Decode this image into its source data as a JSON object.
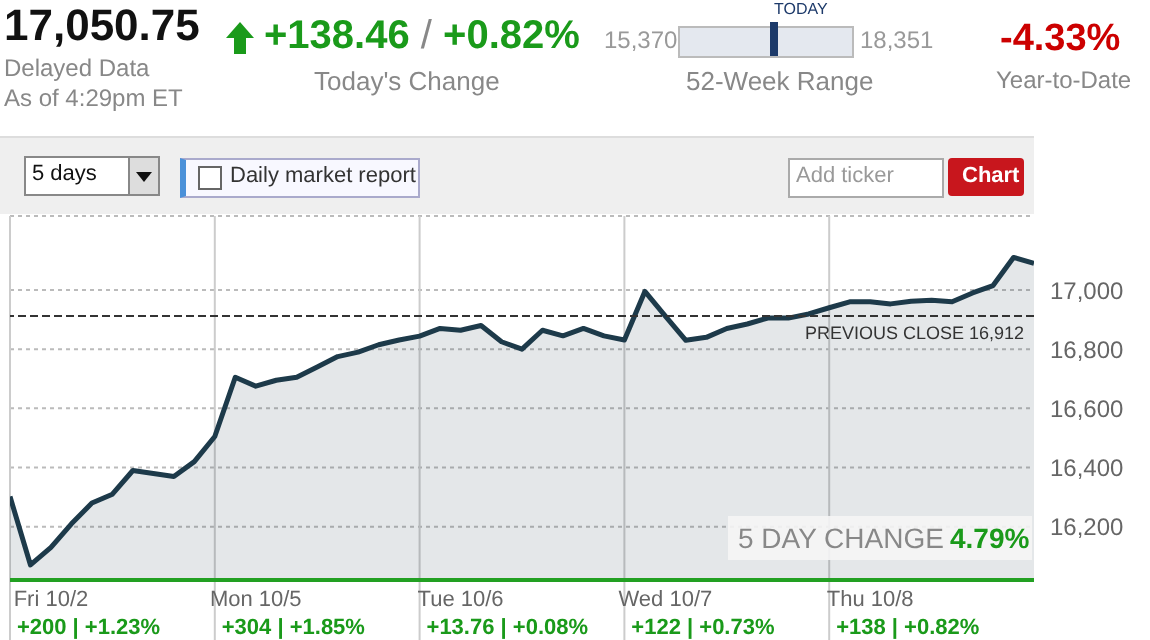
{
  "chart_data": {
    "type": "area",
    "categories": [
      null,
      null,
      "Fri 10/2",
      null,
      null,
      null,
      null,
      null,
      null,
      null,
      null,
      null,
      "Mon 10/5",
      null,
      null,
      null,
      null,
      null,
      null,
      null,
      null,
      null,
      "Tue 10/6",
      null,
      null,
      null,
      null,
      null,
      null,
      null,
      null,
      null,
      "Wed 10/7",
      null,
      null,
      null,
      null,
      null,
      null,
      null,
      null,
      null,
      "Thu 10/8",
      null,
      null,
      null,
      null,
      null,
      null,
      null,
      null
    ],
    "series": [
      {
        "color": "#1d3a4a",
        "values": [
          16302,
          16071,
          16130,
          16210,
          16280,
          16310,
          16390,
          16380,
          16370,
          16420,
          16505,
          16705,
          16675,
          16695,
          16705,
          16740,
          16775,
          16790,
          16815,
          16831,
          16844,
          16870,
          16864,
          16880,
          16825,
          16800,
          16864,
          16845,
          16870,
          16845,
          16831,
          16995,
          16912,
          16830,
          16840,
          16870,
          16885,
          16905,
          16905,
          16919,
          16940,
          16960,
          16960,
          16953,
          16962,
          16965,
          16960,
          16990,
          17015,
          17110,
          17090
        ]
      }
    ],
    "ylim": [
      16020,
      17250
    ],
    "yticks": [
      {
        "value": 16200,
        "label": "16,200"
      },
      {
        "value": 16400,
        "label": "16,400"
      },
      {
        "value": 16600,
        "label": "16,600"
      },
      {
        "value": 16800,
        "label": "16,800"
      },
      {
        "value": 17000,
        "label": "17,000"
      }
    ],
    "grid": true,
    "legend": false,
    "marker": "none",
    "line_style": "solid",
    "ref_lines": [
      {
        "axis": "y",
        "value": 16912,
        "label": "PREVIOUS CLOSE 16,912",
        "line_style": "dashed",
        "color": "#333333"
      }
    ],
    "annotations": [
      "17,050.75",
      "Delayed Data",
      "As of 4:29pm ET",
      "+138.46",
      "/",
      "+0.82%",
      "Today's Change",
      "15,370",
      "TODAY",
      "18,351",
      "52-Week Range",
      "-4.33%",
      "Year-to-Date",
      "5 days",
      "Daily market report",
      "Add ticker",
      "Chart",
      "5 DAY CHANGE",
      "4.79%",
      "+200 | +1.23%",
      "+304 | +1.85%",
      "+13.76 | +0.08%",
      "+122 | +0.73%",
      "+138 | +0.82%"
    ]
  }
}
